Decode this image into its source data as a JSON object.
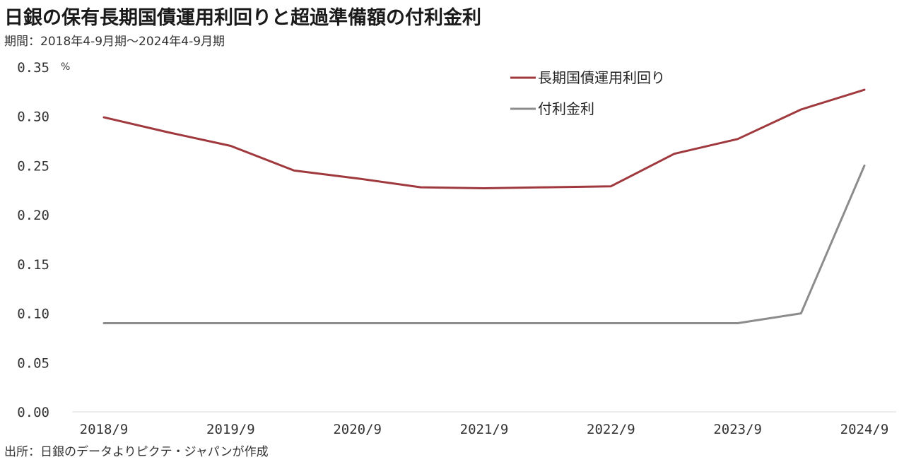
{
  "title": "日銀の保有長期国債運用利回りと超過準備額の付利金利",
  "subtitle": "期間：2018年4-9月期～2024年4-9月期",
  "source": "出所：日銀のデータよりピクテ・ジャパンが作成",
  "colors": {
    "series1": "#a0393e",
    "series2": "#8c8c8c",
    "axis": "#d9d9d9"
  },
  "chart_data": {
    "type": "line",
    "unit": "%",
    "ylim": [
      0,
      0.35
    ],
    "yticks": [
      "0.00",
      "0.05",
      "0.10",
      "0.15",
      "0.20",
      "0.25",
      "0.30",
      "0.35"
    ],
    "xtick_labels": [
      "2018/9",
      "2019/9",
      "2020/9",
      "2021/9",
      "2022/9",
      "2023/9",
      "2024/9"
    ],
    "legend_position": "top-right",
    "grid": false,
    "series": [
      {
        "name": "長期国債運用利回り",
        "values": [
          0.299,
          0.284,
          0.27,
          0.245,
          0.237,
          0.228,
          0.227,
          0.228,
          0.229,
          0.262,
          0.277,
          0.307,
          0.327
        ]
      },
      {
        "name": "付利金利",
        "values": [
          0.09,
          0.09,
          0.09,
          0.09,
          0.09,
          0.09,
          0.09,
          0.09,
          0.09,
          0.09,
          0.09,
          0.1,
          0.25
        ]
      }
    ]
  }
}
